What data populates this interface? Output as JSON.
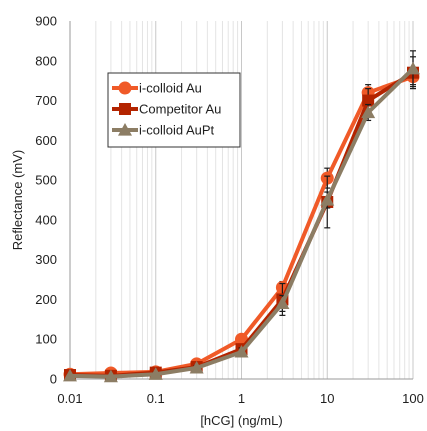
{
  "chart_data": {
    "type": "line",
    "title": "",
    "xlabel": "[hCG] (ng/mL)",
    "ylabel": "Reflectance (mV)",
    "x_scale": "log",
    "xlim": [
      0.01,
      100
    ],
    "ylim": [
      0,
      900
    ],
    "x_ticks": [
      0.01,
      0.1,
      1,
      10,
      100
    ],
    "x_tick_labels": [
      "0.01",
      "0.1",
      "1",
      "10",
      "100"
    ],
    "y_ticks": [
      0,
      100,
      200,
      300,
      400,
      500,
      600,
      700,
      800,
      900
    ],
    "y_tick_labels": [
      "0",
      "100",
      "200",
      "300",
      "400",
      "500",
      "600",
      "700",
      "800",
      "900"
    ],
    "grid": {
      "x": true,
      "y": false
    },
    "legend_position": "upper-left",
    "x": [
      0.01,
      0.03,
      0.1,
      0.3,
      1,
      3,
      10,
      30,
      100
    ],
    "series": [
      {
        "name": "i-colloid Au",
        "color": "#f05a28",
        "marker": "circle",
        "values": [
          12,
          15,
          18,
          38,
          100,
          230,
          505,
          720,
          760
        ],
        "errors": [
          5,
          5,
          5,
          8,
          10,
          15,
          25,
          20,
          20
        ]
      },
      {
        "name": "Competitor Au",
        "color": "#b32400",
        "marker": "square",
        "values": [
          10,
          8,
          16,
          30,
          75,
          200,
          445,
          700,
          770
        ],
        "errors": [
          4,
          4,
          5,
          8,
          10,
          40,
          65,
          30,
          40
        ]
      },
      {
        "name": "i-colloid AuPt",
        "color": "#8c7d64",
        "marker": "triangle",
        "values": [
          8,
          6,
          12,
          28,
          68,
          190,
          450,
          670,
          780
        ],
        "errors": [
          4,
          4,
          5,
          6,
          10,
          20,
          20,
          20,
          45
        ]
      }
    ]
  }
}
